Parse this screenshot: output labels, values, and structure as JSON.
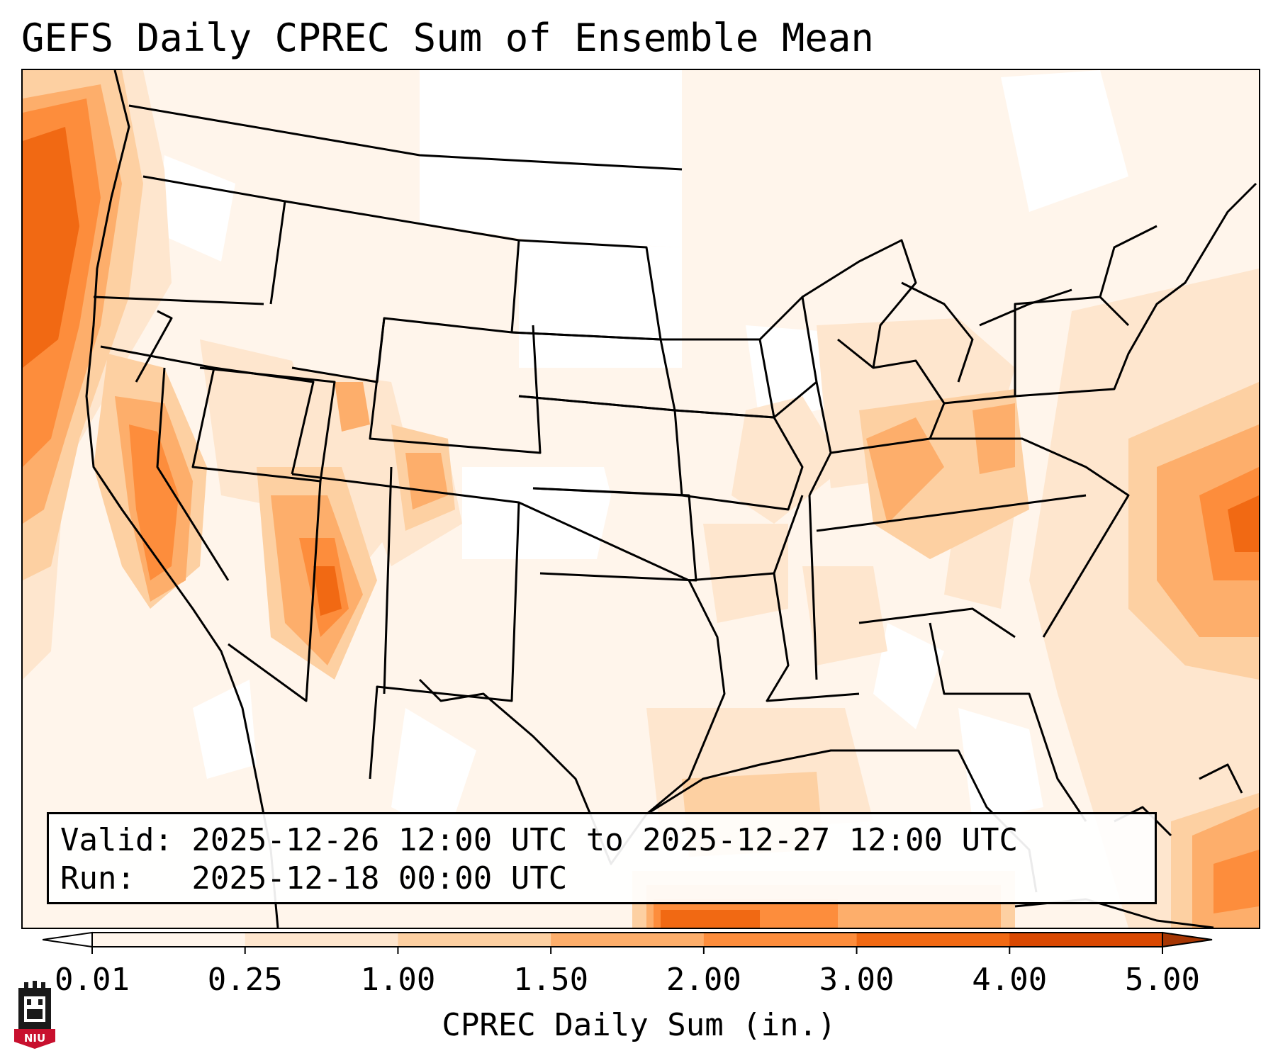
{
  "title": "GEFS Daily CPREC Sum of Ensemble Mean",
  "info": {
    "valid_line": "Valid: 2025-12-26 12:00 UTC to 2025-12-27 12:00 UTC",
    "run_line": "Run:   2025-12-18 00:00 UTC"
  },
  "colorbar": {
    "label": "CPREC Daily Sum (in.)",
    "ticks": [
      "0.01",
      "0.25",
      "1.00",
      "1.50",
      "2.00",
      "3.00",
      "4.00",
      "5.00"
    ],
    "colors": [
      "#fff5eb",
      "#fee6ce",
      "#fdd0a2",
      "#fdae6b",
      "#fd8d3c",
      "#f16913",
      "#d94801"
    ],
    "under_color": "#ffffff",
    "over_color": "#a63603",
    "extend": "both"
  },
  "logo": {
    "text": "NIU",
    "icon": "university-tower-icon",
    "color": "#c8102e"
  },
  "map": {
    "region": "Contiguous United States",
    "projection": "Lambert Conformal",
    "coastline_color": "#000000",
    "fill_colors": {
      "pale": "#fff5eb",
      "light": "#fee6ce",
      "medium": "#fdd0a2",
      "strong": "#fdae6b",
      "heavy": "#fd8d3c",
      "intense": "#f16913",
      "extreme": "#d94801"
    }
  }
}
